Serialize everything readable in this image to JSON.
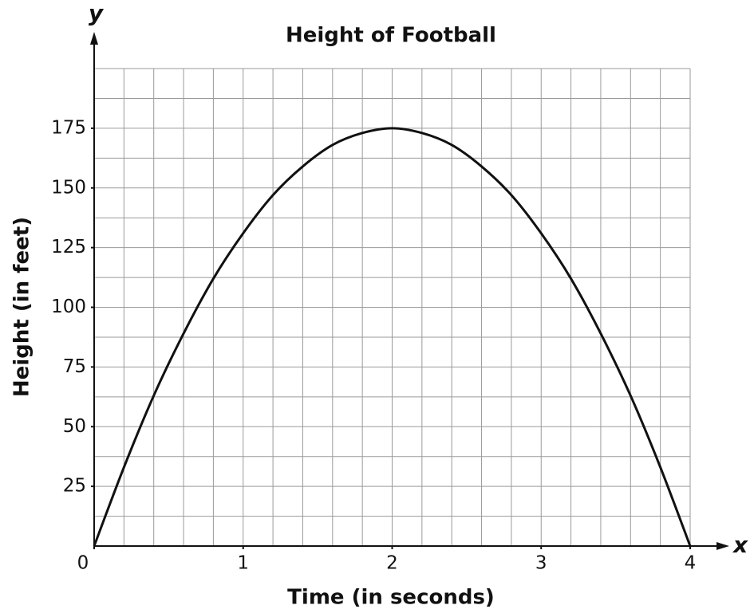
{
  "chart_data": {
    "type": "line",
    "title": "Height of Football",
    "x_label": "Time (in seconds)",
    "y_label": "Height (in feet)",
    "x_axis_letter": "x",
    "y_axis_letter": "y",
    "x": [
      0,
      0.2,
      0.4,
      0.6,
      0.8,
      1,
      1.2,
      1.4,
      1.6,
      1.8,
      2,
      2.2,
      2.4,
      2.6,
      2.8,
      3,
      3.2,
      3.4,
      3.6,
      3.8,
      4
    ],
    "series": [
      {
        "name": "Height",
        "color": "#111111",
        "values": [
          0,
          33,
          63,
          89,
          112,
          131,
          147,
          159,
          168,
          173,
          175,
          173,
          168,
          159,
          147,
          131,
          112,
          89,
          63,
          33,
          0
        ]
      }
    ],
    "xlim": [
      0,
      4
    ],
    "xticks": [
      0,
      1,
      2,
      3,
      4
    ],
    "ylim": [
      0,
      200
    ],
    "yticks": [
      25,
      50,
      75,
      100,
      125,
      150,
      175
    ],
    "grid": {
      "x_step": 0.2,
      "y_step": 12.5
    }
  }
}
